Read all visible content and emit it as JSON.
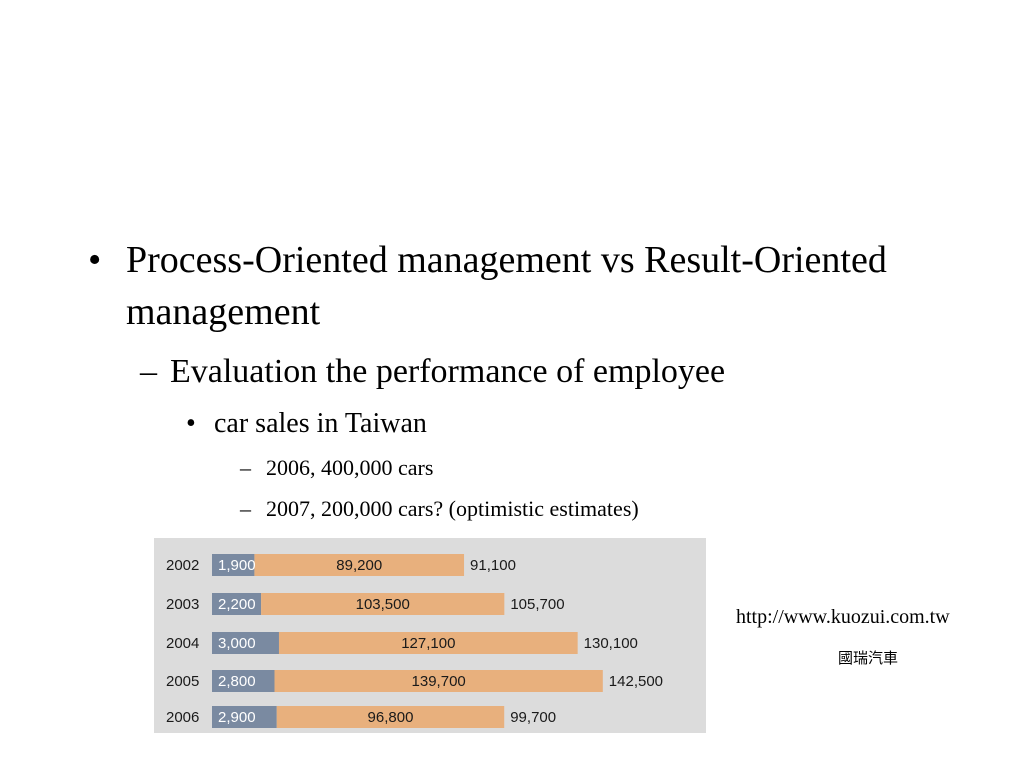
{
  "bullet_l1": {
    "symbol": "•",
    "text": "Process-Oriented management vs Result-Oriented management"
  },
  "bullet_l2": {
    "symbol": "–",
    "text": "Evaluation the performance of employee"
  },
  "bullet_l3": {
    "symbol": "•",
    "text": "car sales in Taiwan"
  },
  "bullet_l4": [
    {
      "symbol": "–",
      "text": "2006, 400,000 cars"
    },
    {
      "symbol": "–",
      "text": "2007, 200,000 cars? (optimistic estimates)"
    }
  ],
  "source_url": "http://www.kuozui.com.tw",
  "brand_name": "國瑞汽車",
  "chart_data": {
    "type": "bar",
    "stacked": true,
    "orientation": "horizontal",
    "categories": [
      "2002",
      "2003",
      "2004",
      "2005",
      "2006"
    ],
    "series": [
      {
        "color": "#7a8aa1",
        "values": [
          1900,
          2200,
          3000,
          2800,
          2900
        ],
        "labels": [
          "1,900",
          "2,200",
          "3,000",
          "2,800",
          "2,900"
        ]
      },
      {
        "color": "#e8b07d",
        "values": [
          89200,
          103500,
          127100,
          139700,
          96800
        ],
        "labels": [
          "89,200",
          "103,500",
          "127,100",
          "139,700",
          "96,800"
        ]
      }
    ],
    "totals": [
      "91,100",
      "105,700",
      "130,100",
      "142,500",
      "99,700"
    ],
    "title": "",
    "xlabel": "",
    "ylabel": ""
  }
}
